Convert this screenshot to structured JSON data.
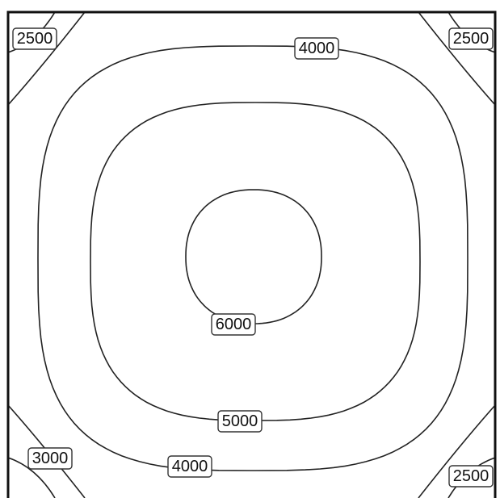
{
  "chart_data": {
    "type": "contour",
    "levels": [
      2500,
      3000,
      4000,
      5000,
      6000
    ],
    "color": "#222222"
  }
}
